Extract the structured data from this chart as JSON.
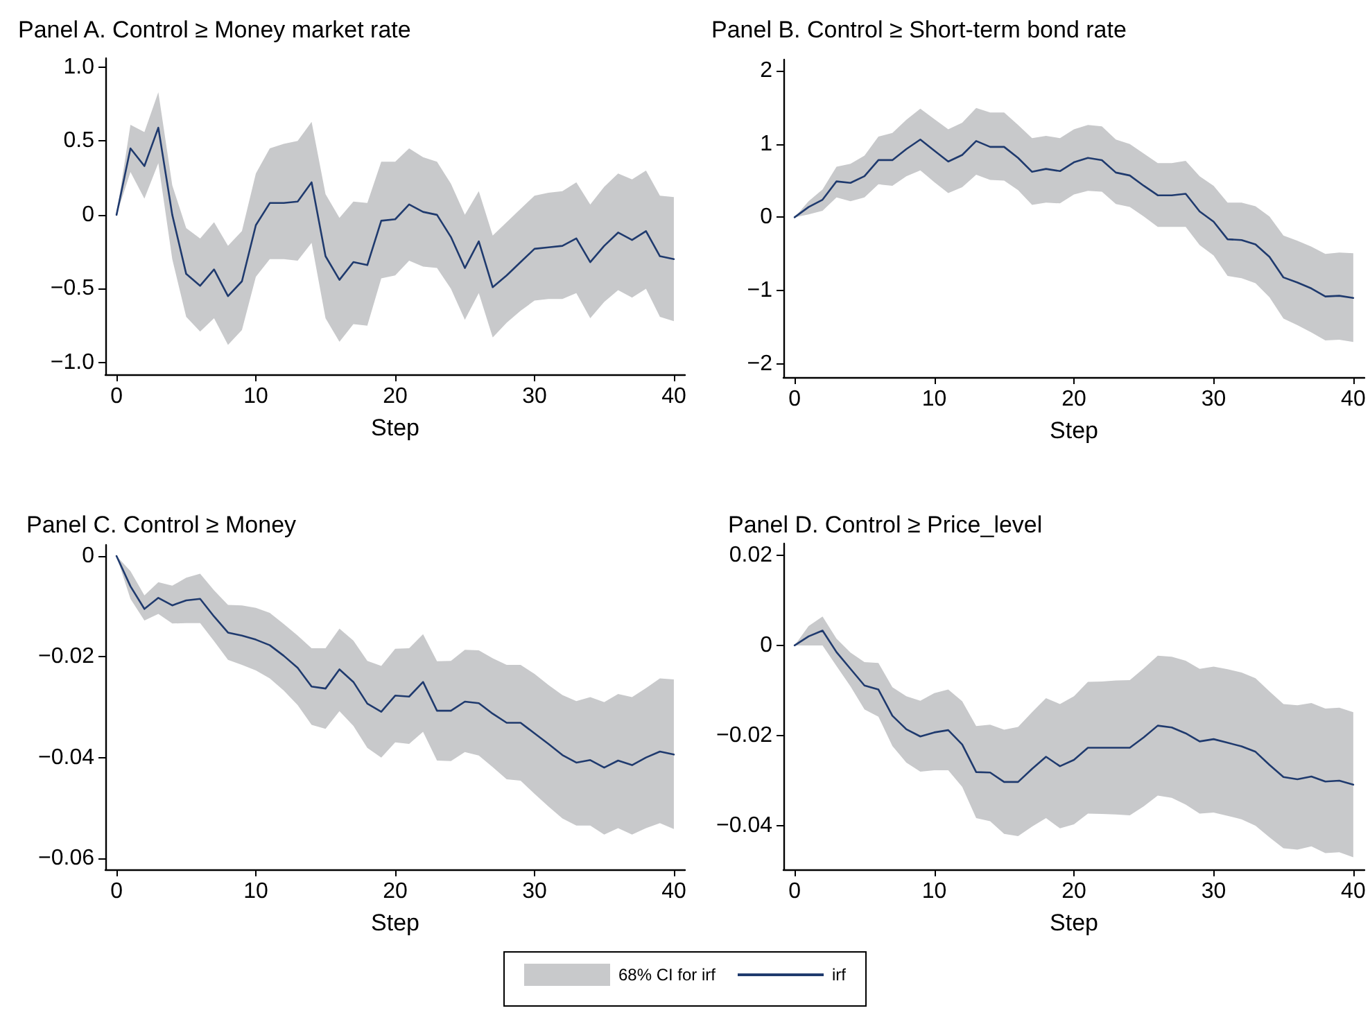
{
  "chart_data": [
    {
      "type": "line",
      "title": "Panel A. Control ≥ Money market rate",
      "xlabel": "Step",
      "xlim": [
        -0.8,
        40.8
      ],
      "xticks": [
        0,
        10,
        20,
        30,
        40
      ],
      "ylim": [
        -1.08,
        1.06
      ],
      "yticks": [
        {
          "value": -1,
          "label": "−1.0"
        },
        {
          "value": -0.5,
          "label": "−0.5"
        },
        0,
        0.5,
        {
          "value": 1,
          "label": "1.0"
        }
      ],
      "x": [
        0,
        1,
        2,
        3,
        4,
        5,
        6,
        7,
        8,
        9,
        10,
        11,
        12,
        13,
        14,
        15,
        16,
        17,
        18,
        19,
        20,
        21,
        22,
        23,
        24,
        25,
        26,
        27,
        28,
        29,
        30,
        31,
        32,
        33,
        34,
        35,
        36,
        37,
        38,
        39,
        40
      ],
      "series": [
        {
          "color": "#1f3a6e",
          "values": [
            0,
            0.45,
            0.33,
            0.59,
            0,
            -0.4,
            -0.48,
            -0.37,
            -0.55,
            -0.45,
            -0.07,
            0.08,
            0.08,
            0.09,
            0.22,
            -0.28,
            -0.44,
            -0.32,
            -0.34,
            -0.04,
            -0.03,
            0.07,
            0.02,
            0,
            -0.15,
            -0.36,
            -0.18,
            -0.49,
            -0.41,
            -0.32,
            -0.23,
            -0.22,
            -0.21,
            -0.16,
            -0.32,
            -0.21,
            -0.12,
            -0.17,
            -0.11,
            -0.28,
            -0.3
          ],
          "lower": [
            0,
            0.29,
            0.11,
            0.35,
            -0.3,
            -0.69,
            -0.79,
            -0.7,
            -0.88,
            -0.78,
            -0.42,
            -0.3,
            -0.3,
            -0.31,
            -0.19,
            -0.7,
            -0.86,
            -0.74,
            -0.75,
            -0.43,
            -0.41,
            -0.31,
            -0.35,
            -0.36,
            -0.5,
            -0.71,
            -0.53,
            -0.83,
            -0.73,
            -0.65,
            -0.58,
            -0.57,
            -0.57,
            -0.53,
            -0.7,
            -0.59,
            -0.51,
            -0.56,
            -0.5,
            -0.69,
            -0.72
          ],
          "upper": [
            0,
            0.61,
            0.56,
            0.83,
            0.2,
            -0.09,
            -0.16,
            -0.05,
            -0.21,
            -0.11,
            0.28,
            0.45,
            0.48,
            0.5,
            0.63,
            0.14,
            -0.02,
            0.09,
            0.08,
            0.36,
            0.36,
            0.45,
            0.39,
            0.36,
            0.21,
            0,
            0.16,
            -0.14,
            -0.05,
            0.04,
            0.13,
            0.15,
            0.16,
            0.22,
            0.07,
            0.19,
            0.28,
            0.24,
            0.3,
            0.13,
            0.12
          ]
        }
      ]
    },
    {
      "type": "line",
      "title": "Panel B. Control ≥ Short-term bond rate",
      "xlabel": "Step",
      "xlim": [
        -0.8,
        40.8
      ],
      "xticks": [
        0,
        10,
        20,
        30,
        40
      ],
      "ylim": [
        -2.18,
        2.15
      ],
      "yticks": [
        {
          "value": -2,
          "label": "−2"
        },
        {
          "value": -1,
          "label": "−1"
        },
        0,
        1,
        2
      ],
      "x": [
        0,
        1,
        2,
        3,
        4,
        5,
        6,
        7,
        8,
        9,
        10,
        11,
        12,
        13,
        14,
        15,
        16,
        17,
        18,
        19,
        20,
        21,
        22,
        23,
        24,
        25,
        26,
        27,
        28,
        29,
        30,
        31,
        32,
        33,
        34,
        35,
        36,
        37,
        38,
        39,
        40
      ],
      "series": [
        {
          "color": "#1f3a6e",
          "values": [
            0,
            0.14,
            0.24,
            0.49,
            0.47,
            0.56,
            0.78,
            0.78,
            0.93,
            1.06,
            0.91,
            0.76,
            0.85,
            1.04,
            0.96,
            0.96,
            0.81,
            0.62,
            0.66,
            0.63,
            0.75,
            0.81,
            0.78,
            0.61,
            0.57,
            0.43,
            0.3,
            0.3,
            0.32,
            0.08,
            -0.06,
            -0.3,
            -0.31,
            -0.37,
            -0.54,
            -0.82,
            -0.89,
            -0.97,
            -1.08,
            -1.07,
            -1.1
          ],
          "lower": [
            0,
            0.04,
            0.09,
            0.27,
            0.22,
            0.27,
            0.45,
            0.43,
            0.56,
            0.64,
            0.48,
            0.33,
            0.41,
            0.58,
            0.51,
            0.5,
            0.37,
            0.17,
            0.2,
            0.19,
            0.31,
            0.36,
            0.35,
            0.18,
            0.14,
            0.01,
            -0.13,
            -0.13,
            -0.13,
            -0.38,
            -0.52,
            -0.8,
            -0.83,
            -0.9,
            -1.09,
            -1.38,
            -1.47,
            -1.57,
            -1.68,
            -1.67,
            -1.7
          ],
          "upper": [
            0,
            0.22,
            0.38,
            0.69,
            0.73,
            0.84,
            1.1,
            1.15,
            1.33,
            1.48,
            1.34,
            1.2,
            1.29,
            1.49,
            1.43,
            1.43,
            1.26,
            1.08,
            1.11,
            1.08,
            1.2,
            1.26,
            1.24,
            1.06,
            1,
            0.87,
            0.74,
            0.74,
            0.77,
            0.56,
            0.43,
            0.2,
            0.2,
            0.15,
            0.01,
            -0.25,
            -0.32,
            -0.4,
            -0.5,
            -0.48,
            -0.49
          ]
        }
      ]
    },
    {
      "type": "line",
      "title": "Panel C. Control ≥ Money",
      "xlabel": "Step",
      "xlim": [
        -0.8,
        40.8
      ],
      "xticks": [
        0,
        10,
        20,
        30,
        40
      ],
      "ylim": [
        -0.0622,
        0.0022
      ],
      "yticks": [
        {
          "value": -0.06,
          "label": "−0.06"
        },
        {
          "value": -0.04,
          "label": "−0.04"
        },
        {
          "value": -0.02,
          "label": "−0.02"
        },
        0
      ],
      "x": [
        0,
        1,
        2,
        3,
        4,
        5,
        6,
        7,
        8,
        9,
        10,
        11,
        12,
        13,
        14,
        15,
        16,
        17,
        18,
        19,
        20,
        21,
        22,
        23,
        24,
        25,
        26,
        27,
        28,
        29,
        30,
        31,
        32,
        33,
        34,
        35,
        36,
        37,
        38,
        39,
        40
      ],
      "series": [
        {
          "color": "#1f3a6e",
          "values": [
            0,
            -0.006,
            -0.0105,
            -0.0083,
            -0.0098,
            -0.0088,
            -0.0085,
            -0.012,
            -0.0152,
            -0.0158,
            -0.0166,
            -0.0177,
            -0.0198,
            -0.0222,
            -0.0259,
            -0.0263,
            -0.0225,
            -0.025,
            -0.0293,
            -0.0309,
            -0.0277,
            -0.0279,
            -0.025,
            -0.0307,
            -0.0307,
            -0.0289,
            -0.0292,
            -0.0313,
            -0.0331,
            -0.0331,
            -0.0352,
            -0.0373,
            -0.0395,
            -0.041,
            -0.0405,
            -0.042,
            -0.0406,
            -0.0415,
            -0.04,
            -0.0388,
            -0.0394
          ],
          "lower": [
            0,
            -0.0085,
            -0.0128,
            -0.0115,
            -0.0134,
            -0.0133,
            -0.0133,
            -0.0169,
            -0.0206,
            -0.0216,
            -0.0227,
            -0.0243,
            -0.0267,
            -0.0296,
            -0.0335,
            -0.0343,
            -0.0308,
            -0.0337,
            -0.0381,
            -0.04,
            -0.037,
            -0.0373,
            -0.0349,
            -0.0406,
            -0.0407,
            -0.0389,
            -0.0396,
            -0.0419,
            -0.0443,
            -0.0446,
            -0.0472,
            -0.0497,
            -0.0521,
            -0.0535,
            -0.0535,
            -0.0553,
            -0.054,
            -0.0553,
            -0.054,
            -0.053,
            -0.0542
          ],
          "upper": [
            0,
            -0.003,
            -0.0078,
            -0.0052,
            -0.0059,
            -0.0043,
            -0.0035,
            -0.0068,
            -0.0097,
            -0.0098,
            -0.0103,
            -0.0113,
            -0.0135,
            -0.0158,
            -0.0183,
            -0.0183,
            -0.0144,
            -0.0168,
            -0.0208,
            -0.0218,
            -0.0184,
            -0.0183,
            -0.0155,
            -0.0209,
            -0.0208,
            -0.0186,
            -0.0187,
            -0.0203,
            -0.0216,
            -0.0216,
            -0.0234,
            -0.0256,
            -0.0276,
            -0.0288,
            -0.028,
            -0.029,
            -0.0274,
            -0.028,
            -0.0262,
            -0.0243,
            -0.0245
          ]
        }
      ]
    },
    {
      "type": "line",
      "title": "Panel D. Control ≥ Price_level",
      "xlabel": "Step",
      "xlim": [
        -0.8,
        40.8
      ],
      "xticks": [
        0,
        10,
        20,
        30,
        40
      ],
      "ylim": [
        -0.0497,
        0.0226
      ],
      "yticks": [
        {
          "value": -0.04,
          "label": "−0.04"
        },
        {
          "value": -0.02,
          "label": "−0.02"
        },
        0,
        0.02
      ],
      "legend": "bottom",
      "annotations": [
        "68% CI for irf"
      ],
      "x": [
        0,
        1,
        2,
        3,
        4,
        5,
        6,
        7,
        8,
        9,
        10,
        11,
        12,
        13,
        14,
        15,
        16,
        17,
        18,
        19,
        20,
        21,
        22,
        23,
        24,
        25,
        26,
        27,
        28,
        29,
        30,
        31,
        32,
        33,
        34,
        35,
        36,
        37,
        38,
        39,
        40
      ],
      "series": [
        {
          "name": "irf",
          "color": "#1f3a6e",
          "values": [
            0,
            0.002,
            0.0033,
            -0.0015,
            -0.0052,
            -0.0089,
            -0.0098,
            -0.0156,
            -0.0186,
            -0.0202,
            -0.0193,
            -0.0188,
            -0.022,
            -0.0281,
            -0.0282,
            -0.0303,
            -0.0303,
            -0.0274,
            -0.0247,
            -0.0268,
            -0.0254,
            -0.0227,
            -0.0227,
            -0.0227,
            -0.0227,
            -0.0204,
            -0.0178,
            -0.0182,
            -0.0195,
            -0.0213,
            -0.0208,
            -0.0216,
            -0.0224,
            -0.0236,
            -0.0265,
            -0.0292,
            -0.0297,
            -0.0291,
            -0.0302,
            -0.03,
            -0.0309
          ],
          "lower": [
            0,
            0,
            0,
            -0.0046,
            -0.0091,
            -0.0142,
            -0.0158,
            -0.0223,
            -0.026,
            -0.028,
            -0.0277,
            -0.0277,
            -0.0314,
            -0.0383,
            -0.039,
            -0.0418,
            -0.0423,
            -0.0402,
            -0.0383,
            -0.0406,
            -0.0397,
            -0.0373,
            -0.0374,
            -0.0375,
            -0.0377,
            -0.0357,
            -0.0333,
            -0.0338,
            -0.0353,
            -0.0373,
            -0.0371,
            -0.0378,
            -0.0386,
            -0.04,
            -0.0426,
            -0.045,
            -0.0453,
            -0.0446,
            -0.0461,
            -0.0459,
            -0.047
          ],
          "upper": [
            0,
            0.0043,
            0.0064,
            0.0015,
            -0.0016,
            -0.0037,
            -0.0039,
            -0.0093,
            -0.0113,
            -0.0123,
            -0.0106,
            -0.0098,
            -0.0124,
            -0.0179,
            -0.0176,
            -0.0187,
            -0.0181,
            -0.0148,
            -0.0117,
            -0.013,
            -0.0113,
            -0.0081,
            -0.008,
            -0.0078,
            -0.0077,
            -0.0051,
            -0.0023,
            -0.0025,
            -0.0034,
            -0.0052,
            -0.0047,
            -0.0053,
            -0.006,
            -0.0073,
            -0.0102,
            -0.013,
            -0.0133,
            -0.0128,
            -0.014,
            -0.0138,
            -0.0148
          ]
        }
      ]
    }
  ]
}
